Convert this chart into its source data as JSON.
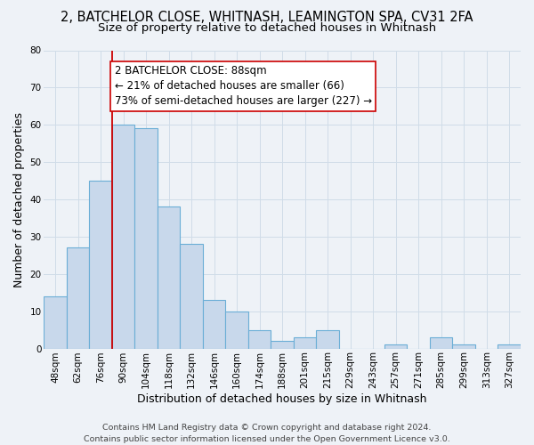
{
  "title": "2, BATCHELOR CLOSE, WHITNASH, LEAMINGTON SPA, CV31 2FA",
  "subtitle": "Size of property relative to detached houses in Whitnash",
  "xlabel": "Distribution of detached houses by size in Whitnash",
  "ylabel": "Number of detached properties",
  "bar_color": "#c8d8eb",
  "bar_edge_color": "#6baed6",
  "grid_color": "#d0dce8",
  "background_color": "#eef2f7",
  "bin_labels": [
    "48sqm",
    "62sqm",
    "76sqm",
    "90sqm",
    "104sqm",
    "118sqm",
    "132sqm",
    "146sqm",
    "160sqm",
    "174sqm",
    "188sqm",
    "201sqm",
    "215sqm",
    "229sqm",
    "243sqm",
    "257sqm",
    "271sqm",
    "285sqm",
    "299sqm",
    "313sqm",
    "327sqm"
  ],
  "bar_heights": [
    14,
    27,
    45,
    60,
    59,
    38,
    28,
    13,
    10,
    5,
    2,
    3,
    5,
    0,
    0,
    1,
    0,
    3,
    1,
    0,
    1
  ],
  "ylim": [
    0,
    80
  ],
  "yticks": [
    0,
    10,
    20,
    30,
    40,
    50,
    60,
    70,
    80
  ],
  "property_line_x": 3,
  "property_line_color": "#cc0000",
  "annotation_line1": "2 BATCHELOR CLOSE: 88sqm",
  "annotation_line2": "← 21% of detached houses are smaller (66)",
  "annotation_line3": "73% of semi-detached houses are larger (227) →",
  "annotation_box_color": "#ffffff",
  "annotation_box_edge": "#cc0000",
  "footer_line1": "Contains HM Land Registry data © Crown copyright and database right 2024.",
  "footer_line2": "Contains public sector information licensed under the Open Government Licence v3.0.",
  "title_fontsize": 10.5,
  "subtitle_fontsize": 9.5,
  "axis_label_fontsize": 9,
  "tick_fontsize": 7.5,
  "annotation_fontsize": 8.5,
  "footer_fontsize": 6.8
}
